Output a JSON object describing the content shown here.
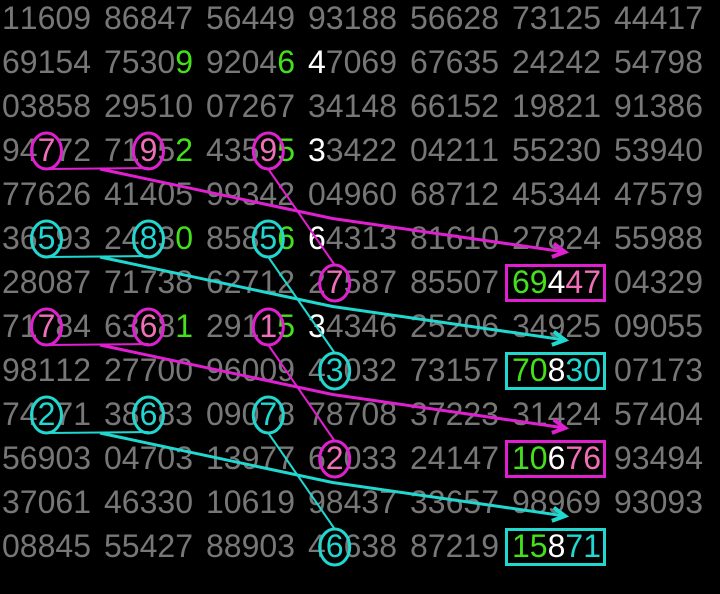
{
  "colors": {
    "text": "#777777",
    "green": "#44e01a",
    "white": "#ffffff",
    "magenta": "#e020d0",
    "pink": "#f070b8",
    "cyan": "#20d8d0"
  },
  "rows": [
    [
      "11609",
      "86847",
      "56449",
      "93188",
      "56628",
      "73125",
      "44417"
    ],
    [
      "69154",
      "75309",
      "92046",
      "47069",
      "67635",
      "24242",
      "54798"
    ],
    [
      "03858",
      "29510",
      "07267",
      "34148",
      "66152",
      "19821",
      "91386"
    ],
    [
      "94772",
      "71952",
      "43595",
      "33422",
      "04211",
      "55230",
      "53940"
    ],
    [
      "77626",
      "41405",
      "99342",
      "04960",
      "68712",
      "45344",
      "47579"
    ],
    [
      "36593",
      "24830",
      "85856",
      "64313",
      "81610",
      "27824",
      "55988"
    ],
    [
      "28087",
      "71738",
      "62712",
      "27587",
      "85507",
      "69447",
      "04329"
    ],
    [
      "71784",
      "63681",
      "29115",
      "34346",
      "25206",
      "34925",
      "09055"
    ],
    [
      "98112",
      "27700",
      "96009",
      "43032",
      "73157",
      "70830",
      "07173"
    ],
    [
      "74271",
      "38683",
      "09078",
      "78708",
      "37223",
      "31424",
      "57404"
    ],
    [
      "56903",
      "04703",
      "13977",
      "62033",
      "24147",
      "10676",
      "93494"
    ],
    [
      "37061",
      "46330",
      "10619",
      "98437",
      "33657",
      "98969",
      "93093"
    ],
    [
      "08845",
      "55427",
      "88903",
      "46638",
      "87219",
      "15871",
      ""
    ]
  ],
  "highlights": [
    {
      "r": 1,
      "c": 1,
      "d": 4,
      "color": "green"
    },
    {
      "r": 1,
      "c": 2,
      "d": 4,
      "color": "green"
    },
    {
      "r": 1,
      "c": 3,
      "d": 0,
      "color": "white"
    },
    {
      "r": 3,
      "c": 1,
      "d": 4,
      "color": "green"
    },
    {
      "r": 3,
      "c": 2,
      "d": 4,
      "color": "green"
    },
    {
      "r": 3,
      "c": 3,
      "d": 0,
      "color": "white"
    },
    {
      "r": 5,
      "c": 1,
      "d": 4,
      "color": "green"
    },
    {
      "r": 5,
      "c": 2,
      "d": 4,
      "color": "green"
    },
    {
      "r": 5,
      "c": 3,
      "d": 0,
      "color": "white"
    },
    {
      "r": 7,
      "c": 1,
      "d": 4,
      "color": "green"
    },
    {
      "r": 7,
      "c": 2,
      "d": 4,
      "color": "green"
    },
    {
      "r": 7,
      "c": 3,
      "d": 0,
      "color": "white"
    }
  ],
  "groups": [
    {
      "color": "magenta",
      "text": "pink",
      "pair": [
        [
          3,
          0,
          2
        ],
        [
          3,
          1,
          2
        ]
      ],
      "diag": [
        [
          3,
          2,
          3
        ],
        [
          6,
          3,
          1
        ]
      ],
      "box": {
        "r": 6,
        "c": 5,
        "digits": [
          "green",
          "green",
          "white",
          "pink",
          "pink"
        ]
      }
    },
    {
      "color": "cyan",
      "text": "cyan",
      "pair": [
        [
          5,
          0,
          2
        ],
        [
          5,
          1,
          2
        ]
      ],
      "diag": [
        [
          5,
          2,
          3
        ],
        [
          8,
          3,
          1
        ]
      ],
      "box": {
        "r": 8,
        "c": 5,
        "digits": [
          "green",
          "green",
          "white",
          "cyan",
          "cyan"
        ]
      }
    },
    {
      "color": "magenta",
      "text": "pink",
      "pair": [
        [
          7,
          0,
          2
        ],
        [
          7,
          1,
          2
        ]
      ],
      "diag": [
        [
          7,
          2,
          3
        ],
        [
          10,
          3,
          1
        ]
      ],
      "box": {
        "r": 10,
        "c": 5,
        "digits": [
          "green",
          "green",
          "white",
          "pink",
          "pink"
        ]
      }
    },
    {
      "color": "cyan",
      "text": "cyan",
      "pair": [
        [
          9,
          0,
          2
        ],
        [
          9,
          1,
          2
        ]
      ],
      "diag": [
        [
          9,
          2,
          3
        ],
        [
          12,
          3,
          1
        ]
      ],
      "box": {
        "r": 12,
        "c": 5,
        "digits": [
          "green",
          "green",
          "white",
          "cyan",
          "cyan"
        ]
      }
    }
  ]
}
